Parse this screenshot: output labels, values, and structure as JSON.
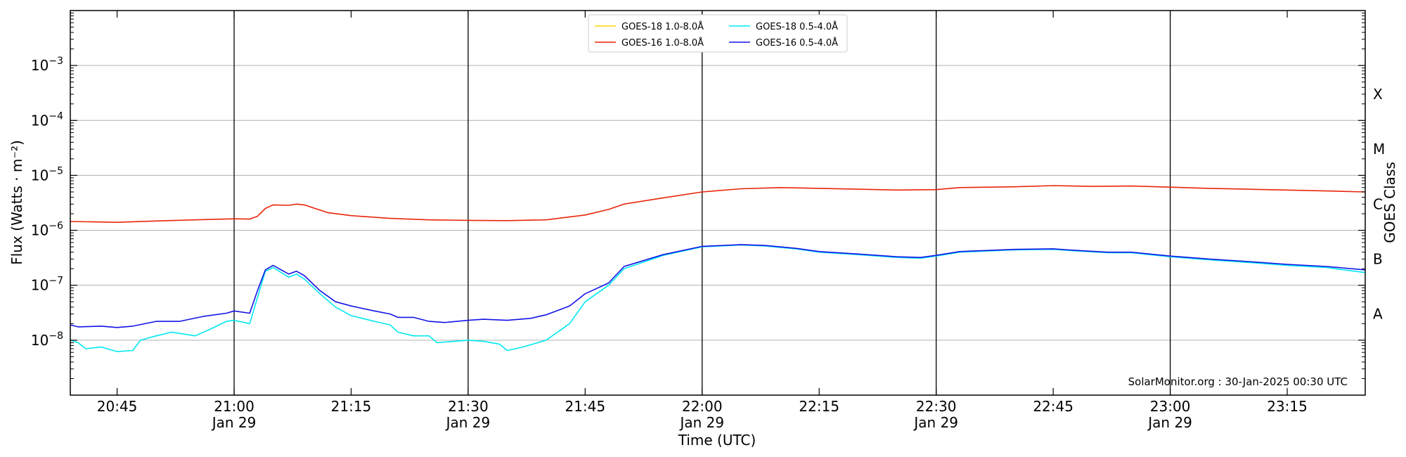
{
  "chart_data": {
    "type": "line",
    "xlabel": "Time (UTC)",
    "ylabel": "Flux (Watts · m⁻²)",
    "ylabel_right": "GOES Class",
    "credit": "SolarMonitor.org : 30-Jan-2025 00:30 UTC",
    "y_scale": "log",
    "ylim": [
      1e-09,
      0.01
    ],
    "xlim": [
      "20:39",
      "23:25"
    ],
    "y_ticks": [
      {
        "value": 1e-08,
        "base": "10",
        "exp": "−8"
      },
      {
        "value": 1e-07,
        "base": "10",
        "exp": "−7"
      },
      {
        "value": 1e-06,
        "base": "10",
        "exp": "−6"
      },
      {
        "value": 1e-05,
        "base": "10",
        "exp": "−5"
      },
      {
        "value": 0.0001,
        "base": "10",
        "exp": "−4"
      },
      {
        "value": 0.001,
        "base": "10",
        "exp": "−3"
      }
    ],
    "x_ticks": [
      {
        "time": "20:45",
        "label": "20:45",
        "date": ""
      },
      {
        "time": "21:00",
        "label": "21:00",
        "date": "Jan 29"
      },
      {
        "time": "21:15",
        "label": "21:15",
        "date": ""
      },
      {
        "time": "21:30",
        "label": "21:30",
        "date": "Jan 29"
      },
      {
        "time": "21:45",
        "label": "21:45",
        "date": ""
      },
      {
        "time": "22:00",
        "label": "22:00",
        "date": "Jan 29"
      },
      {
        "time": "22:15",
        "label": "22:15",
        "date": ""
      },
      {
        "time": "22:30",
        "label": "22:30",
        "date": "Jan 29"
      },
      {
        "time": "22:45",
        "label": "22:45",
        "date": ""
      },
      {
        "time": "23:00",
        "label": "23:00",
        "date": "Jan 29"
      },
      {
        "time": "23:15",
        "label": "23:15",
        "date": ""
      }
    ],
    "vertical_lines": [
      "21:00",
      "21:30",
      "22:00",
      "22:30",
      "23:00"
    ],
    "goes_classes": [
      {
        "label": "A",
        "value": 3e-08
      },
      {
        "label": "B",
        "value": 3e-07
      },
      {
        "label": "C",
        "value": 3e-06
      },
      {
        "label": "M",
        "value": 3e-05
      },
      {
        "label": "X",
        "value": 0.0003
      }
    ],
    "grid": true,
    "legend_position": "top-center",
    "series": [
      {
        "name": "GOES-18 1.0-8.0Å",
        "color": "#ffd700",
        "points": []
      },
      {
        "name": "GOES-16 1.0-8.0Å",
        "color": "#e8260a",
        "points": [
          [
            "20:39",
            1.45e-06
          ],
          [
            "20:45",
            1.4e-06
          ],
          [
            "20:50",
            1.48e-06
          ],
          [
            "20:55",
            1.55e-06
          ],
          [
            "21:00",
            1.62e-06
          ],
          [
            "21:02",
            1.6e-06
          ],
          [
            "21:03",
            1.8e-06
          ],
          [
            "21:04",
            2.5e-06
          ],
          [
            "21:05",
            2.9e-06
          ],
          [
            "21:07",
            2.85e-06
          ],
          [
            "21:08",
            3e-06
          ],
          [
            "21:09",
            2.9e-06
          ],
          [
            "21:10",
            2.6e-06
          ],
          [
            "21:12",
            2.1e-06
          ],
          [
            "21:15",
            1.85e-06
          ],
          [
            "21:20",
            1.65e-06
          ],
          [
            "21:25",
            1.55e-06
          ],
          [
            "21:30",
            1.52e-06
          ],
          [
            "21:35",
            1.5e-06
          ],
          [
            "21:40",
            1.55e-06
          ],
          [
            "21:45",
            1.9e-06
          ],
          [
            "21:48",
            2.4e-06
          ],
          [
            "21:50",
            3e-06
          ],
          [
            "21:55",
            3.9e-06
          ],
          [
            "22:00",
            5e-06
          ],
          [
            "22:05",
            5.7e-06
          ],
          [
            "22:10",
            6e-06
          ],
          [
            "22:15",
            5.8e-06
          ],
          [
            "22:20",
            5.6e-06
          ],
          [
            "22:25",
            5.4e-06
          ],
          [
            "22:30",
            5.5e-06
          ],
          [
            "22:33",
            6e-06
          ],
          [
            "22:40",
            6.2e-06
          ],
          [
            "22:45",
            6.5e-06
          ],
          [
            "22:50",
            6.3e-06
          ],
          [
            "22:55",
            6.4e-06
          ],
          [
            "23:00",
            6.1e-06
          ],
          [
            "23:05",
            5.8e-06
          ],
          [
            "23:10",
            5.6e-06
          ],
          [
            "23:15",
            5.4e-06
          ],
          [
            "23:20",
            5.2e-06
          ],
          [
            "23:25",
            5e-06
          ]
        ]
      },
      {
        "name": "GOES-18 0.5-4.0Å",
        "color": "#00e8f0",
        "points": [
          [
            "20:39",
            1e-08
          ],
          [
            "20:40",
            9e-09
          ],
          [
            "20:41",
            7e-09
          ],
          [
            "20:43",
            7.5e-09
          ],
          [
            "20:45",
            6.2e-09
          ],
          [
            "20:47",
            6.5e-09
          ],
          [
            "20:48",
            1e-08
          ],
          [
            "20:50",
            1.2e-08
          ],
          [
            "20:52",
            1.4e-08
          ],
          [
            "20:55",
            1.2e-08
          ],
          [
            "20:57",
            1.6e-08
          ],
          [
            "20:59",
            2.2e-08
          ],
          [
            "21:00",
            2.3e-08
          ],
          [
            "21:02",
            2e-08
          ],
          [
            "21:03",
            6e-08
          ],
          [
            "21:04",
            1.8e-07
          ],
          [
            "21:05",
            2.1e-07
          ],
          [
            "21:07",
            1.4e-07
          ],
          [
            "21:08",
            1.6e-07
          ],
          [
            "21:09",
            1.3e-07
          ],
          [
            "21:11",
            7e-08
          ],
          [
            "21:13",
            4e-08
          ],
          [
            "21:15",
            2.8e-08
          ],
          [
            "21:18",
            2.2e-08
          ],
          [
            "21:20",
            1.9e-08
          ],
          [
            "21:21",
            1.4e-08
          ],
          [
            "21:23",
            1.2e-08
          ],
          [
            "21:25",
            1.2e-08
          ],
          [
            "21:26",
            9e-09
          ],
          [
            "21:30",
            1e-08
          ],
          [
            "21:32",
            9.5e-09
          ],
          [
            "21:34",
            8.5e-09
          ],
          [
            "21:35",
            6.5e-09
          ],
          [
            "21:37",
            7.5e-09
          ],
          [
            "21:40",
            1e-08
          ],
          [
            "21:43",
            2e-08
          ],
          [
            "21:45",
            5e-08
          ],
          [
            "21:48",
            1e-07
          ],
          [
            "21:50",
            2e-07
          ],
          [
            "21:55",
            3.5e-07
          ],
          [
            "22:00",
            5e-07
          ],
          [
            "22:05",
            5.4e-07
          ],
          [
            "22:08",
            5.2e-07
          ],
          [
            "22:12",
            4.6e-07
          ],
          [
            "22:15",
            4e-07
          ],
          [
            "22:20",
            3.6e-07
          ],
          [
            "22:25",
            3.2e-07
          ],
          [
            "22:28",
            3.1e-07
          ],
          [
            "22:30",
            3.4e-07
          ],
          [
            "22:33",
            4e-07
          ],
          [
            "22:40",
            4.4e-07
          ],
          [
            "22:45",
            4.5e-07
          ],
          [
            "22:48",
            4.2e-07
          ],
          [
            "22:52",
            3.9e-07
          ],
          [
            "22:55",
            3.9e-07
          ],
          [
            "23:00",
            3.3e-07
          ],
          [
            "23:05",
            2.9e-07
          ],
          [
            "23:10",
            2.6e-07
          ],
          [
            "23:15",
            2.3e-07
          ],
          [
            "23:20",
            2.1e-07
          ],
          [
            "23:25",
            1.7e-07
          ]
        ]
      },
      {
        "name": "GOES-16 0.5-4.0Å",
        "color": "#1414e6",
        "points": [
          [
            "20:39",
            1.9e-08
          ],
          [
            "20:40",
            1.75e-08
          ],
          [
            "20:43",
            1.8e-08
          ],
          [
            "20:45",
            1.7e-08
          ],
          [
            "20:47",
            1.8e-08
          ],
          [
            "20:50",
            2.2e-08
          ],
          [
            "20:53",
            2.2e-08
          ],
          [
            "20:56",
            2.7e-08
          ],
          [
            "20:59",
            3.1e-08
          ],
          [
            "21:00",
            3.4e-08
          ],
          [
            "21:02",
            3.1e-08
          ],
          [
            "21:03",
            8e-08
          ],
          [
            "21:04",
            1.9e-07
          ],
          [
            "21:05",
            2.3e-07
          ],
          [
            "21:07",
            1.6e-07
          ],
          [
            "21:08",
            1.8e-07
          ],
          [
            "21:09",
            1.5e-07
          ],
          [
            "21:11",
            8e-08
          ],
          [
            "21:13",
            5e-08
          ],
          [
            "21:15",
            4.2e-08
          ],
          [
            "21:18",
            3.4e-08
          ],
          [
            "21:20",
            3e-08
          ],
          [
            "21:21",
            2.6e-08
          ],
          [
            "21:23",
            2.6e-08
          ],
          [
            "21:25",
            2.2e-08
          ],
          [
            "21:27",
            2.1e-08
          ],
          [
            "21:30",
            2.3e-08
          ],
          [
            "21:32",
            2.4e-08
          ],
          [
            "21:35",
            2.3e-08
          ],
          [
            "21:38",
            2.5e-08
          ],
          [
            "21:40",
            2.9e-08
          ],
          [
            "21:43",
            4.2e-08
          ],
          [
            "21:45",
            7e-08
          ],
          [
            "21:48",
            1.1e-07
          ],
          [
            "21:50",
            2.2e-07
          ],
          [
            "21:55",
            3.6e-07
          ],
          [
            "22:00",
            5.1e-07
          ],
          [
            "22:05",
            5.5e-07
          ],
          [
            "22:08",
            5.3e-07
          ],
          [
            "22:12",
            4.7e-07
          ],
          [
            "22:15",
            4.1e-07
          ],
          [
            "22:20",
            3.7e-07
          ],
          [
            "22:25",
            3.3e-07
          ],
          [
            "22:28",
            3.2e-07
          ],
          [
            "22:30",
            3.5e-07
          ],
          [
            "22:33",
            4.1e-07
          ],
          [
            "22:40",
            4.5e-07
          ],
          [
            "22:45",
            4.6e-07
          ],
          [
            "22:48",
            4.3e-07
          ],
          [
            "22:52",
            4e-07
          ],
          [
            "22:55",
            4e-07
          ],
          [
            "23:00",
            3.4e-07
          ],
          [
            "23:05",
            3e-07
          ],
          [
            "23:10",
            2.7e-07
          ],
          [
            "23:15",
            2.4e-07
          ],
          [
            "23:20",
            2.2e-07
          ],
          [
            "23:25",
            1.9e-07
          ]
        ]
      }
    ]
  }
}
